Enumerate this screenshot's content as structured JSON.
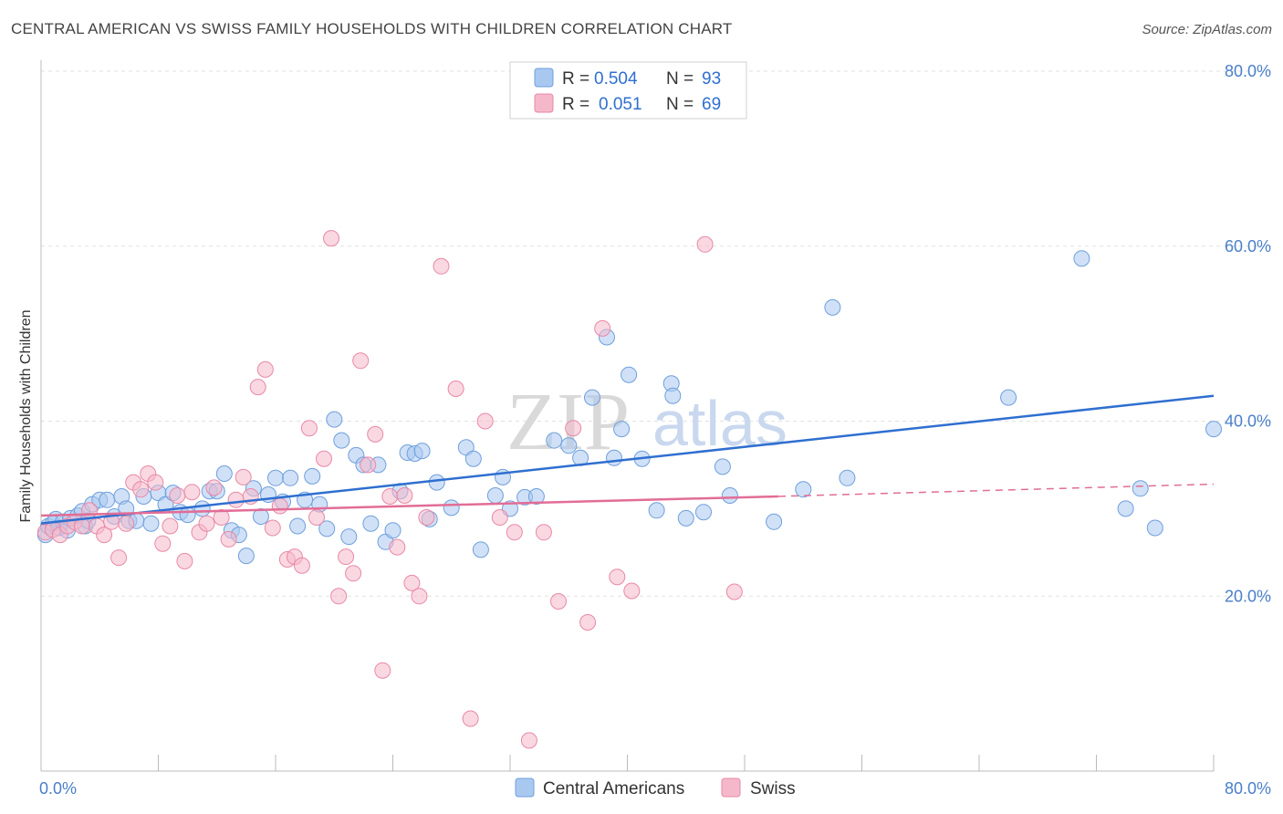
{
  "title": "CENTRAL AMERICAN VS SWISS FAMILY HOUSEHOLDS WITH CHILDREN CORRELATION CHART",
  "source": "Source: ZipAtlas.com",
  "watermark": {
    "zip": "ZIP",
    "atlas": "atlas"
  },
  "legend": {
    "rows": [
      {
        "r_label": "R =",
        "r_value": "0.504",
        "n_label": "N =",
        "n_value": "93",
        "color": "#a9c8f0"
      },
      {
        "r_label": "R =",
        "r_value": "0.051",
        "n_label": "N =",
        "n_value": "69",
        "color": "#f5b8cb"
      }
    ]
  },
  "bottom_legend": [
    {
      "label": "Central Americans",
      "color": "#a9c8f0"
    },
    {
      "label": "Swiss",
      "color": "#f5b8cb"
    }
  ],
  "chart_data": {
    "type": "scatter",
    "title": "CENTRAL AMERICAN VS SWISS FAMILY HOUSEHOLDS WITH CHILDREN CORRELATION CHART",
    "xlabel": "",
    "ylabel": "Family Households with Children",
    "xlim": [
      0,
      80
    ],
    "ylim": [
      0,
      80
    ],
    "x_tick_labels": [
      "0.0%",
      "80.0%"
    ],
    "y_tick_labels": [
      "20.0%",
      "40.0%",
      "60.0%",
      "80.0%"
    ],
    "y_ticks": [
      20,
      40,
      60,
      80
    ],
    "grid": true,
    "legend_position": "top-center",
    "series": [
      {
        "name": "Central Americans",
        "color": "#a9c8f0",
        "stroke": "#6f9fdc",
        "trend": {
          "x": [
            0,
            80
          ],
          "y": [
            28.3,
            42.9
          ],
          "color": "#2f6fd0"
        },
        "points": [
          [
            0.3,
            27.0
          ],
          [
            0.5,
            28.0
          ],
          [
            0.8,
            28.3
          ],
          [
            1.0,
            28.8
          ],
          [
            1.2,
            27.8
          ],
          [
            1.5,
            28.5
          ],
          [
            1.8,
            27.5
          ],
          [
            2.0,
            28.9
          ],
          [
            2.5,
            29.2
          ],
          [
            2.8,
            29.7
          ],
          [
            3.0,
            28.0
          ],
          [
            3.2,
            28.6
          ],
          [
            3.5,
            30.5
          ],
          [
            4.0,
            31.0
          ],
          [
            4.5,
            31.0
          ],
          [
            5.0,
            29.1
          ],
          [
            5.5,
            31.4
          ],
          [
            5.8,
            30.0
          ],
          [
            6.0,
            28.6
          ],
          [
            6.5,
            28.6
          ],
          [
            7.0,
            31.4
          ],
          [
            7.5,
            28.3
          ],
          [
            8.0,
            31.8
          ],
          [
            8.5,
            30.5
          ],
          [
            9.0,
            31.8
          ],
          [
            9.5,
            29.6
          ],
          [
            10.0,
            29.3
          ],
          [
            11.0,
            30.0
          ],
          [
            11.5,
            32.0
          ],
          [
            12.0,
            32.0
          ],
          [
            12.5,
            34.0
          ],
          [
            13.0,
            27.5
          ],
          [
            13.5,
            27.0
          ],
          [
            14.0,
            24.6
          ],
          [
            14.5,
            32.3
          ],
          [
            15.0,
            29.1
          ],
          [
            15.5,
            31.6
          ],
          [
            16.0,
            33.5
          ],
          [
            16.5,
            30.8
          ],
          [
            17.0,
            33.5
          ],
          [
            17.5,
            28.0
          ],
          [
            18.0,
            31.0
          ],
          [
            18.5,
            33.7
          ],
          [
            19.0,
            30.5
          ],
          [
            19.5,
            27.7
          ],
          [
            20.0,
            40.2
          ],
          [
            20.5,
            37.8
          ],
          [
            21.0,
            26.8
          ],
          [
            21.5,
            36.1
          ],
          [
            22.0,
            35.0
          ],
          [
            22.5,
            28.3
          ],
          [
            23.0,
            35.0
          ],
          [
            23.5,
            26.2
          ],
          [
            24.0,
            27.5
          ],
          [
            24.5,
            32.0
          ],
          [
            25.0,
            36.4
          ],
          [
            25.5,
            36.3
          ],
          [
            26.0,
            36.6
          ],
          [
            26.5,
            28.8
          ],
          [
            27.0,
            33.0
          ],
          [
            28.0,
            30.1
          ],
          [
            29.0,
            37.0
          ],
          [
            29.5,
            35.7
          ],
          [
            30.0,
            25.3
          ],
          [
            31.0,
            31.5
          ],
          [
            31.5,
            33.6
          ],
          [
            32.0,
            30.0
          ],
          [
            33.0,
            31.3
          ],
          [
            33.8,
            31.4
          ],
          [
            35.0,
            37.8
          ],
          [
            36.0,
            37.2
          ],
          [
            36.8,
            35.8
          ],
          [
            37.6,
            42.7
          ],
          [
            38.6,
            49.6
          ],
          [
            39.1,
            35.8
          ],
          [
            39.6,
            39.1
          ],
          [
            40.1,
            45.3
          ],
          [
            41.0,
            35.7
          ],
          [
            42.0,
            29.8
          ],
          [
            43.0,
            44.3
          ],
          [
            43.1,
            42.9
          ],
          [
            44.0,
            28.9
          ],
          [
            45.2,
            29.6
          ],
          [
            46.5,
            34.8
          ],
          [
            47.0,
            31.5
          ],
          [
            50.0,
            28.5
          ],
          [
            52.0,
            32.2
          ],
          [
            54.0,
            53.0
          ],
          [
            55.0,
            33.5
          ],
          [
            66.0,
            42.7
          ],
          [
            71.0,
            58.6
          ],
          [
            74.0,
            30.0
          ],
          [
            75.0,
            32.3
          ],
          [
            76.0,
            27.8
          ],
          [
            80.0,
            39.1
          ]
        ]
      },
      {
        "name": "Swiss",
        "color": "#f5b8cb",
        "stroke": "#e889a7",
        "trend": {
          "x": [
            0,
            50.3
          ],
          "y": [
            29.2,
            31.4
          ],
          "color": "#e26d96",
          "dashed_to": [
            80,
            32.8
          ]
        },
        "points": [
          [
            0.3,
            27.3
          ],
          [
            0.8,
            27.6
          ],
          [
            1.3,
            27.0
          ],
          [
            1.8,
            28.0
          ],
          [
            2.3,
            28.5
          ],
          [
            2.8,
            28.0
          ],
          [
            3.3,
            29.8
          ],
          [
            3.8,
            28.0
          ],
          [
            4.3,
            27.0
          ],
          [
            4.8,
            28.5
          ],
          [
            5.3,
            24.4
          ],
          [
            5.8,
            28.3
          ],
          [
            6.3,
            33.0
          ],
          [
            6.8,
            32.2
          ],
          [
            7.3,
            34.0
          ],
          [
            7.8,
            33.0
          ],
          [
            8.3,
            26.0
          ],
          [
            8.8,
            28.0
          ],
          [
            9.3,
            31.5
          ],
          [
            9.8,
            24.0
          ],
          [
            10.3,
            31.9
          ],
          [
            10.8,
            27.3
          ],
          [
            11.3,
            28.3
          ],
          [
            11.8,
            32.4
          ],
          [
            12.3,
            29.0
          ],
          [
            12.8,
            26.5
          ],
          [
            13.3,
            31.0
          ],
          [
            13.8,
            33.6
          ],
          [
            14.3,
            31.4
          ],
          [
            14.8,
            43.9
          ],
          [
            15.3,
            45.9
          ],
          [
            15.8,
            27.8
          ],
          [
            16.3,
            30.3
          ],
          [
            16.8,
            24.2
          ],
          [
            17.3,
            24.5
          ],
          [
            17.8,
            23.5
          ],
          [
            18.3,
            39.2
          ],
          [
            18.8,
            29.0
          ],
          [
            19.3,
            35.7
          ],
          [
            19.8,
            60.9
          ],
          [
            20.3,
            20.0
          ],
          [
            20.8,
            24.5
          ],
          [
            21.3,
            22.6
          ],
          [
            21.8,
            46.9
          ],
          [
            22.3,
            35.0
          ],
          [
            22.8,
            38.5
          ],
          [
            23.3,
            11.5
          ],
          [
            23.8,
            31.4
          ],
          [
            24.3,
            25.6
          ],
          [
            24.8,
            31.5
          ],
          [
            25.3,
            21.5
          ],
          [
            25.8,
            20.0
          ],
          [
            26.3,
            29.0
          ],
          [
            27.3,
            57.7
          ],
          [
            28.3,
            43.7
          ],
          [
            29.3,
            6.0
          ],
          [
            30.3,
            40.0
          ],
          [
            31.3,
            29.0
          ],
          [
            32.3,
            27.3
          ],
          [
            33.3,
            3.5
          ],
          [
            34.3,
            27.3
          ],
          [
            35.3,
            19.4
          ],
          [
            36.3,
            39.2
          ],
          [
            37.3,
            17.0
          ],
          [
            38.3,
            50.6
          ],
          [
            39.3,
            22.2
          ],
          [
            40.3,
            20.6
          ],
          [
            45.3,
            60.2
          ],
          [
            47.3,
            20.5
          ]
        ]
      }
    ]
  }
}
